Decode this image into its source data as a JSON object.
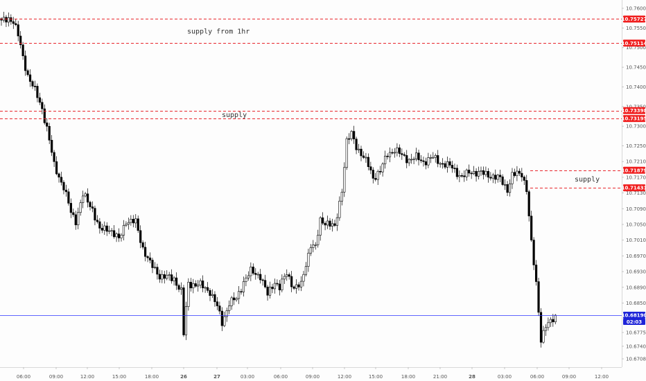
{
  "chart_data": {
    "type": "candlestick",
    "title": "",
    "xlabel": "",
    "ylabel": "",
    "ylim": [
      10.6695,
      10.7625
    ],
    "y_ticks": [
      "10.67080",
      "10.67400",
      "10.67750",
      "10.68500",
      "10.68900",
      "10.69300",
      "10.69700",
      "10.70100",
      "10.70500",
      "10.70900",
      "10.71300",
      "10.71700",
      "10.72100",
      "10.72500",
      "10.73000",
      "10.73500",
      "10.74000",
      "10.74500",
      "10.75000",
      "10.75500",
      "10.76000"
    ],
    "x_ticks": [
      "06:00",
      "09:00",
      "12:00",
      "15:00",
      "18:00",
      "26",
      "21:00",
      "27",
      "03:00",
      "06:00",
      "09:00",
      "12:00",
      "15:00",
      "18:00",
      "21:00",
      "28",
      "03:00",
      "06:00",
      "09:00",
      "12:00"
    ],
    "x_ticks_display": [
      "06:00",
      "09:00",
      "12:00",
      "15:00",
      "18:00",
      "26",
      "27",
      "03:00",
      "06:00",
      "09:00",
      "12:00",
      "15:00",
      "18:00",
      "21:00",
      "28",
      "03:00",
      "06:00",
      "09:00",
      "12:00"
    ],
    "bold_ticks": [
      "26",
      "27",
      "28"
    ],
    "price_tags": [
      {
        "label": "10.75727",
        "value": 10.75727,
        "color": "#f01e1e"
      },
      {
        "label": "10.75114",
        "value": 10.75114,
        "color": "#f01e1e"
      },
      {
        "label": "10.73398",
        "value": 10.73398,
        "color": "#f01e1e"
      },
      {
        "label": "10.73195",
        "value": 10.73195,
        "color": "#f01e1e"
      },
      {
        "label": "10.71879",
        "value": 10.71879,
        "color": "#f01e1e"
      },
      {
        "label": "10.71431",
        "value": 10.71431,
        "color": "#f01e1e"
      },
      {
        "label": "10.68190",
        "value": 10.6819,
        "color": "#1e24d8"
      }
    ],
    "countdown": "02:03",
    "current_price": 10.6819,
    "supply_zones": [
      {
        "label": "supply from 1hr",
        "top": 10.75727,
        "bottom": 10.75114,
        "extent": "full"
      },
      {
        "label": "supply",
        "top": 10.73398,
        "bottom": 10.73195,
        "extent": "full"
      },
      {
        "label": "supply",
        "top": 10.71879,
        "bottom": 10.71431,
        "extent": "right"
      }
    ],
    "candle_path_anchors": [
      [
        0,
        10.7565
      ],
      [
        3,
        10.7575
      ],
      [
        5,
        10.7568
      ],
      [
        7,
        10.753
      ],
      [
        9,
        10.7475
      ],
      [
        11,
        10.743
      ],
      [
        14,
        10.739
      ],
      [
        17,
        10.7345
      ],
      [
        19,
        10.7295
      ],
      [
        22,
        10.72
      ],
      [
        26,
        10.7145
      ],
      [
        29,
        10.708
      ],
      [
        31,
        10.706
      ],
      [
        34,
        10.7125
      ],
      [
        38,
        10.709
      ],
      [
        41,
        10.7035
      ],
      [
        45,
        10.704
      ],
      [
        49,
        10.701
      ],
      [
        52,
        10.706
      ],
      [
        56,
        10.7055
      ],
      [
        59,
        10.699
      ],
      [
        62,
        10.695
      ],
      [
        66,
        10.692
      ],
      [
        69,
        10.6915
      ],
      [
        72,
        10.6912
      ],
      [
        75,
        10.688
      ],
      [
        76,
        10.677
      ],
      [
        78,
        10.69
      ],
      [
        83,
        10.6895
      ],
      [
        87,
        10.688
      ],
      [
        90,
        10.684
      ],
      [
        92,
        10.68
      ],
      [
        95,
        10.685
      ],
      [
        98,
        10.686
      ],
      [
        101,
        10.6905
      ],
      [
        104,
        10.693
      ],
      [
        108,
        10.692
      ],
      [
        111,
        10.687
      ],
      [
        114,
        10.6905
      ],
      [
        116,
        10.689
      ],
      [
        119,
        10.6925
      ],
      [
        122,
        10.689
      ],
      [
        125,
        10.6895
      ],
      [
        127,
        10.695
      ],
      [
        129,
        10.7
      ],
      [
        131,
        10.699
      ],
      [
        133,
        10.706
      ],
      [
        136,
        10.7055
      ],
      [
        139,
        10.704
      ],
      [
        142,
        10.714
      ],
      [
        144,
        10.726
      ],
      [
        146,
        10.728
      ],
      [
        148,
        10.725
      ],
      [
        150,
        10.723
      ],
      [
        153,
        10.72
      ],
      [
        155,
        10.717
      ],
      [
        158,
        10.7185
      ],
      [
        161,
        10.723
      ],
      [
        164,
        10.724
      ],
      [
        167,
        10.7225
      ],
      [
        170,
        10.7215
      ],
      [
        173,
        10.722
      ],
      [
        176,
        10.721
      ],
      [
        180,
        10.722
      ],
      [
        184,
        10.7205
      ],
      [
        188,
        10.7195
      ],
      [
        192,
        10.717
      ],
      [
        196,
        10.7185
      ],
      [
        200,
        10.718
      ],
      [
        204,
        10.7175
      ],
      [
        208,
        10.7165
      ],
      [
        211,
        10.714
      ],
      [
        213,
        10.7175
      ],
      [
        217,
        10.718
      ],
      [
        219,
        10.714
      ],
      [
        221,
        10.7
      ],
      [
        223,
        10.69
      ],
      [
        225,
        10.676
      ],
      [
        227,
        10.679
      ],
      [
        229,
        10.68
      ],
      [
        231,
        10.6819
      ]
    ],
    "n_candles": 232,
    "grid": false,
    "legend": "none"
  }
}
